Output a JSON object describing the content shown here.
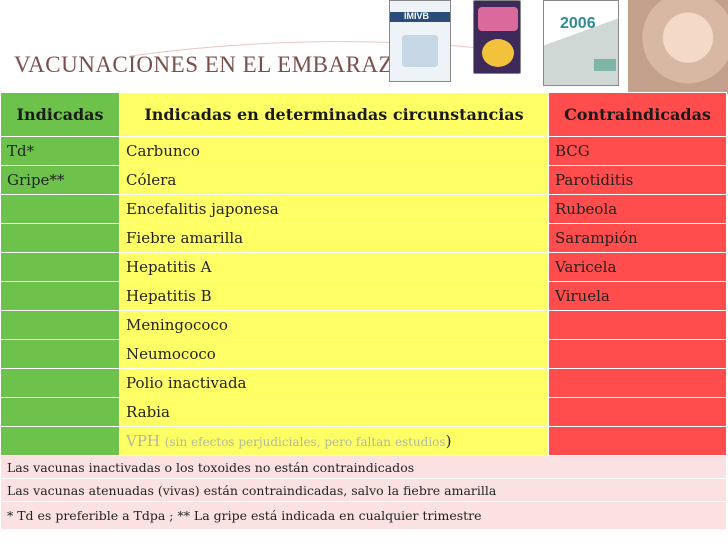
{
  "title": "VACUNACIONES EN EL EMBARAZO",
  "thumbnails": {
    "booklet_title": "IMIVB",
    "pediatria_year": "2006"
  },
  "table": {
    "headers": [
      "Indicadas",
      "Indicadas en determinadas circunstancias",
      "Contraindicadas"
    ],
    "rows": [
      [
        "Td*",
        "Carbunco",
        "BCG"
      ],
      [
        "Gripe**",
        "Cólera",
        "Parotiditis"
      ],
      [
        "",
        "Encefalitis japonesa",
        "Rubeola"
      ],
      [
        "",
        "Fiebre amarilla",
        "Sarampión"
      ],
      [
        "",
        "Hepatitis A",
        "Varicela"
      ],
      [
        "",
        "Hepatitis B",
        "Viruela"
      ],
      [
        "",
        "Meningococo",
        ""
      ],
      [
        "",
        "Neumococo",
        ""
      ],
      [
        "",
        "Polio inactivada",
        ""
      ],
      [
        "",
        "Rabia",
        ""
      ]
    ],
    "vph": {
      "name": "VPH",
      "note": "(sin efectos perjudiciales, pero faltan estudios",
      "close": ")"
    },
    "notes": [
      "Las vacunas inactivadas o los toxoides no están contraindicados",
      "Las vacunas atenuadas (vivas) están contraindicadas, salvo  la fiebre amarilla",
      "* Td es preferible a Tdpa ; ** La gripe está indicada en cualquier trimestre"
    ]
  },
  "colors": {
    "indicadas": "#6cc24a",
    "circunstancias": "#ffff66",
    "contraindicadas": "#ff4d4d",
    "notes_bg": "#fbe2e2",
    "title": "#7a4f4a"
  }
}
